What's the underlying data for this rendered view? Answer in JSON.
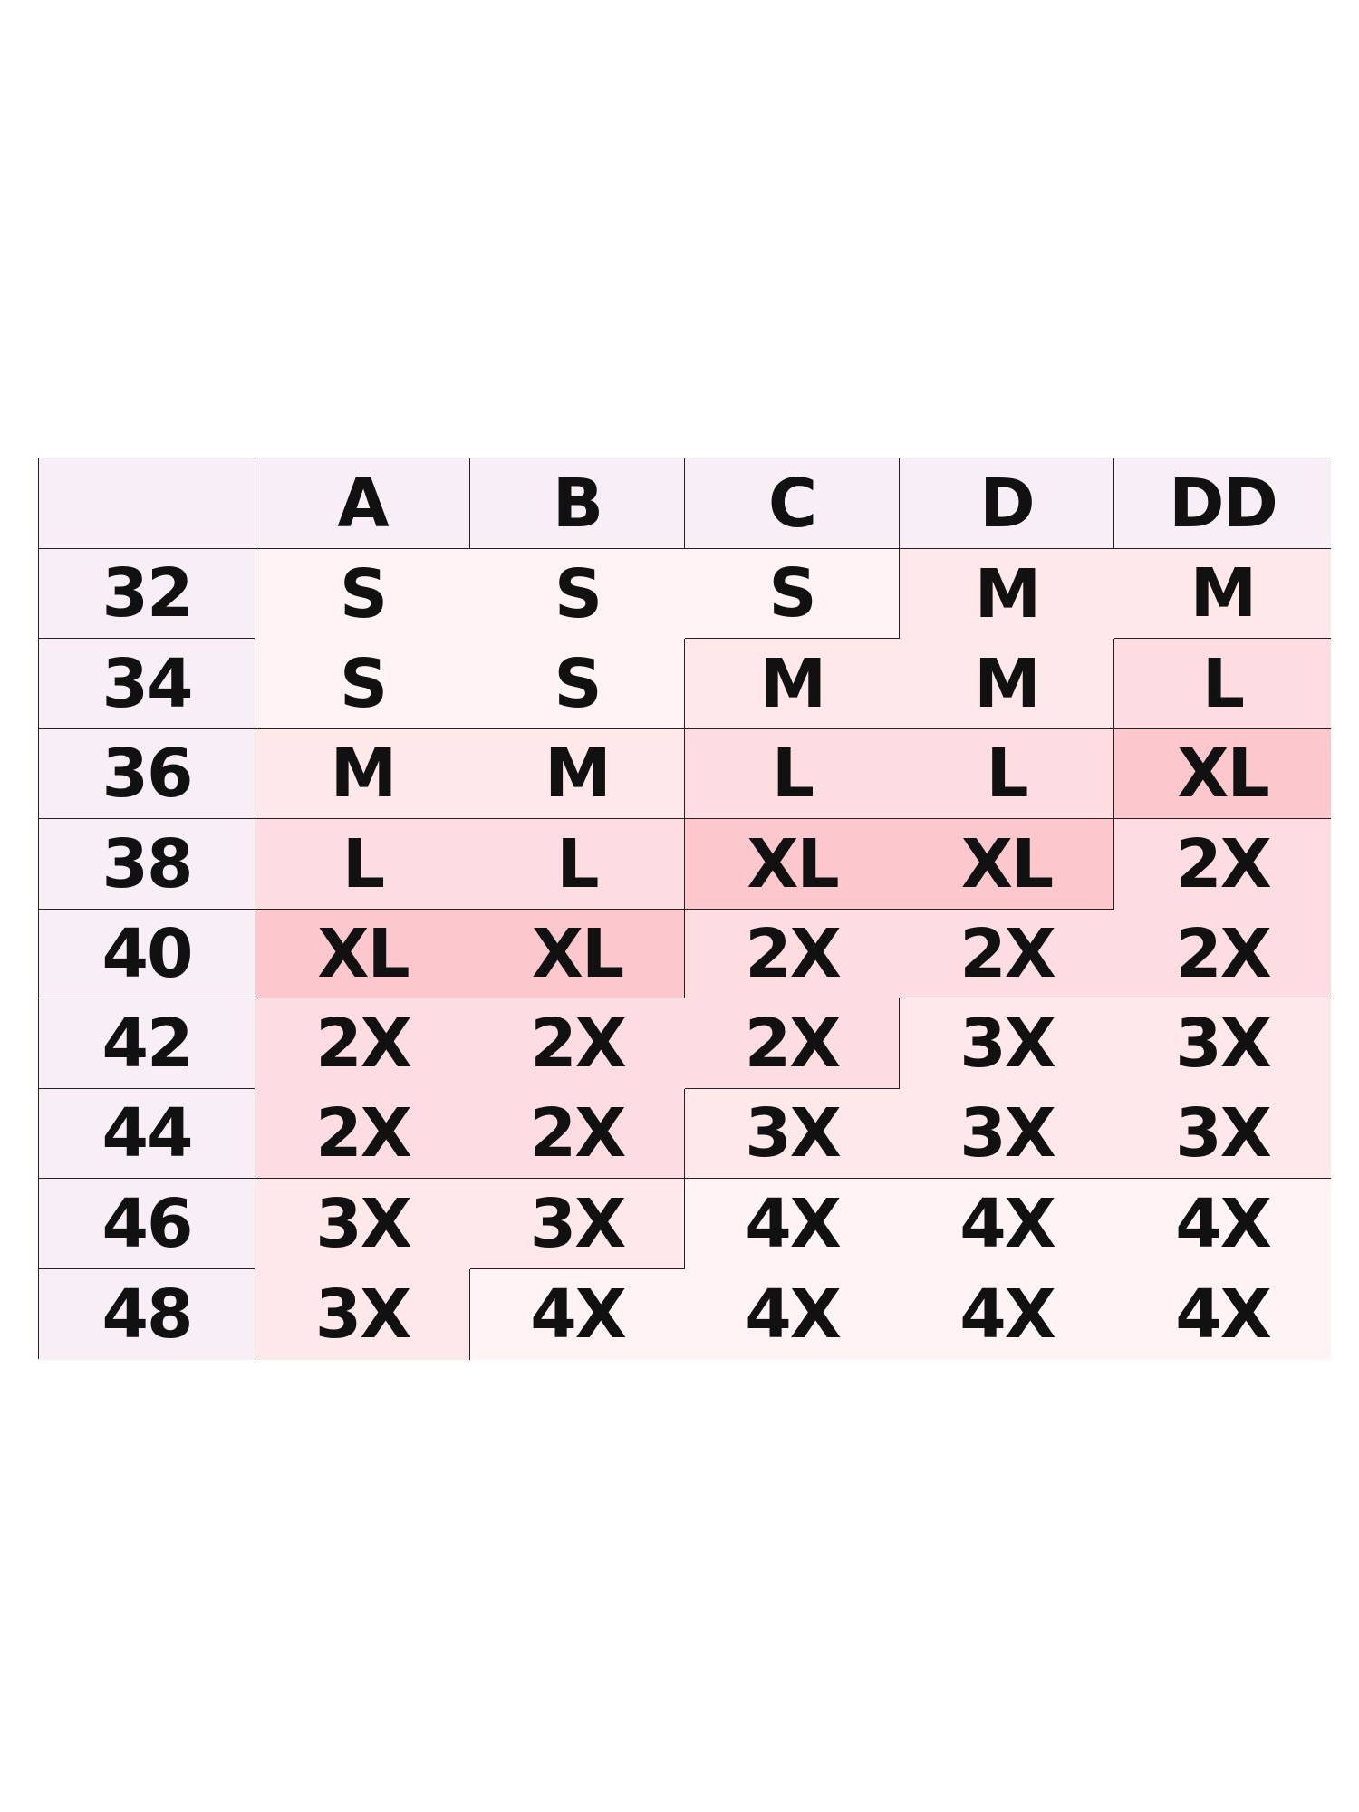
{
  "size_chart": {
    "corner": "",
    "cup_sizes": [
      "A",
      "B",
      "C",
      "D",
      "DD"
    ],
    "band_sizes": [
      "32",
      "34",
      "36",
      "38",
      "40",
      "42",
      "44",
      "46",
      "48"
    ],
    "rows": [
      [
        "S",
        "S",
        "S",
        "M",
        "M"
      ],
      [
        "S",
        "S",
        "M",
        "M",
        "L"
      ],
      [
        "M",
        "M",
        "L",
        "L",
        "XL"
      ],
      [
        "L",
        "L",
        "XL",
        "XL",
        "2X"
      ],
      [
        "XL",
        "XL",
        "2X",
        "2X",
        "2X"
      ],
      [
        "2X",
        "2X",
        "2X",
        "3X",
        "3X"
      ],
      [
        "2X",
        "2X",
        "3X",
        "3X",
        "3X"
      ],
      [
        "3X",
        "3X",
        "4X",
        "4X",
        "4X"
      ],
      [
        "3X",
        "4X",
        "4X",
        "4X",
        "4X"
      ]
    ],
    "colors": {
      "header": "#f8eef6",
      "border": "#222222",
      "S": "#fff3f5",
      "M": "#fee8ea",
      "L": "#fddde1",
      "XL": "#fcc8cd",
      "2X": "#fddde1",
      "3X": "#fee8ea",
      "4X": "#fff3f5"
    }
  }
}
